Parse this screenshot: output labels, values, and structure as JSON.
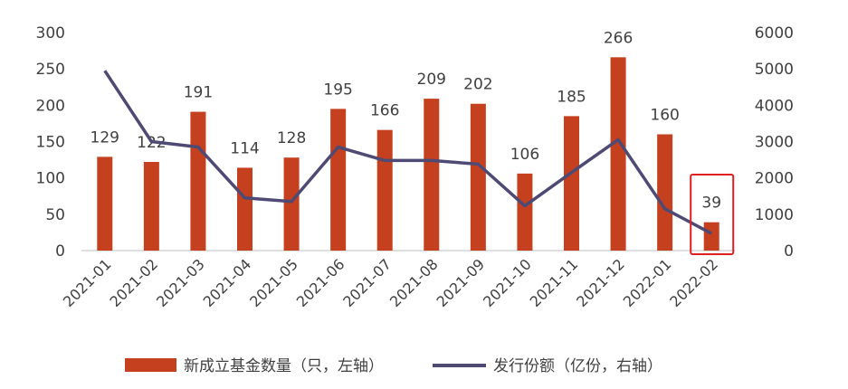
{
  "chart_data": {
    "type": "bar",
    "categories": [
      "2021-01",
      "2021-02",
      "2021-03",
      "2021-04",
      "2021-05",
      "2021-06",
      "2021-07",
      "2021-08",
      "2021-09",
      "2021-10",
      "2021-11",
      "2021-12",
      "2022-01",
      "2022-02"
    ],
    "series": [
      {
        "name": "新成立基金数量（只，左轴）",
        "type": "bar",
        "axis": "left",
        "color": "#c5401e",
        "values": [
          129,
          122,
          191,
          114,
          128,
          195,
          166,
          209,
          202,
          106,
          185,
          266,
          160,
          39
        ]
      },
      {
        "name": "发行份额（亿份，右轴）",
        "type": "line",
        "axis": "right",
        "color": "#4e4a74",
        "values": [
          4950,
          3000,
          2850,
          1450,
          1350,
          2850,
          2480,
          2480,
          2380,
          1230,
          2150,
          3050,
          1150,
          470
        ]
      }
    ],
    "y_left": {
      "ylim": [
        0,
        300
      ],
      "ticks": [
        0,
        50,
        100,
        150,
        200,
        250,
        300
      ]
    },
    "y_right": {
      "ylim": [
        0,
        6000
      ],
      "ticks": [
        0,
        1000,
        2000,
        3000,
        4000,
        5000,
        6000
      ]
    },
    "highlight": {
      "category": "2022-02",
      "color": "#e02020"
    },
    "legend_position": "bottom",
    "grid": false
  }
}
